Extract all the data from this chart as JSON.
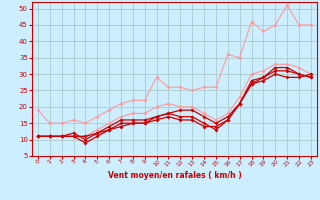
{
  "background_color": "#cceeff",
  "grid_color": "#aacccc",
  "line_color_dark": "#cc0000",
  "line_color_light": "#ff9999",
  "xlabel": "Vent moyen/en rafales ( km/h )",
  "xlabel_color": "#cc0000",
  "tick_color": "#cc0000",
  "axis_color": "#cc0000",
  "ylim": [
    5,
    52
  ],
  "xlim": [
    -0.5,
    23.5
  ],
  "yticks": [
    5,
    10,
    15,
    20,
    25,
    30,
    35,
    40,
    45,
    50
  ],
  "xticks": [
    0,
    1,
    2,
    3,
    4,
    5,
    6,
    7,
    8,
    9,
    10,
    11,
    12,
    13,
    14,
    15,
    16,
    17,
    18,
    19,
    20,
    21,
    22,
    23
  ],
  "series_dark1_x": [
    0,
    1,
    2,
    3,
    4,
    5,
    6,
    7,
    8,
    9,
    10,
    11,
    12,
    13,
    14,
    15,
    16,
    17,
    18,
    19,
    20,
    21,
    22,
    23
  ],
  "series_dark1_y": [
    11,
    11,
    11,
    11,
    9,
    11,
    13,
    15,
    15,
    15,
    16,
    17,
    16,
    16,
    14,
    14,
    16,
    21,
    28,
    29,
    32,
    32,
    30,
    29
  ],
  "series_dark2_x": [
    0,
    1,
    2,
    3,
    4,
    5,
    6,
    7,
    8,
    9,
    10,
    11,
    12,
    13,
    14,
    15,
    16,
    17,
    18,
    19,
    20,
    21,
    22,
    23
  ],
  "series_dark2_y": [
    11,
    11,
    11,
    11,
    11,
    12,
    13,
    14,
    15,
    15,
    17,
    18,
    19,
    19,
    17,
    15,
    17,
    21,
    27,
    28,
    30,
    29,
    29,
    30
  ],
  "series_dark3_x": [
    0,
    1,
    2,
    3,
    4,
    5,
    6,
    7,
    8,
    9,
    10,
    11,
    12,
    13,
    14,
    15,
    16,
    17,
    18,
    19,
    20,
    21,
    22,
    23
  ],
  "series_dark3_y": [
    11,
    11,
    11,
    12,
    10,
    12,
    14,
    16,
    16,
    16,
    17,
    18,
    17,
    17,
    15,
    13,
    16,
    21,
    27,
    29,
    31,
    31,
    30,
    29
  ],
  "series_light1_x": [
    0,
    1,
    2,
    3,
    4,
    5,
    6,
    7,
    8,
    9,
    10,
    11,
    12,
    13,
    14,
    15,
    16,
    17,
    18,
    19,
    20,
    21,
    22,
    23
  ],
  "series_light1_y": [
    19,
    15,
    15,
    16,
    15,
    17,
    19,
    21,
    22,
    22,
    29,
    26,
    26,
    25,
    26,
    26,
    36,
    35,
    46,
    43,
    45,
    51,
    45,
    45
  ],
  "series_light2_x": [
    0,
    1,
    2,
    3,
    4,
    5,
    6,
    7,
    8,
    9,
    10,
    11,
    12,
    13,
    14,
    15,
    16,
    17,
    18,
    19,
    20,
    21,
    22,
    23
  ],
  "series_light2_y": [
    11,
    11,
    11,
    11,
    11,
    13,
    15,
    17,
    18,
    18,
    20,
    21,
    20,
    20,
    18,
    16,
    18,
    23,
    30,
    31,
    33,
    33,
    32,
    30
  ]
}
